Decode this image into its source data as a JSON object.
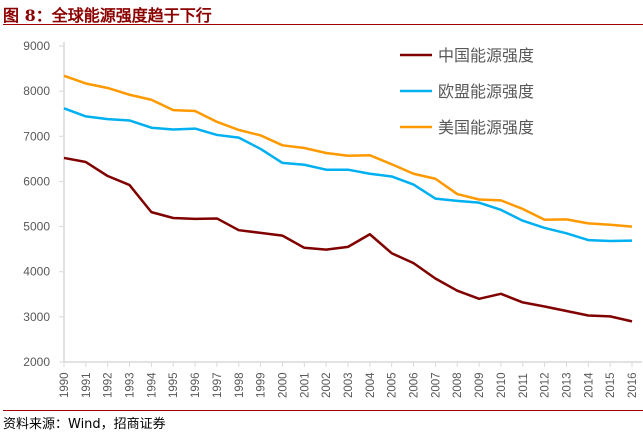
{
  "title": "图 8：全球能源强度趋于下行",
  "source": "资料来源：Wind，招商证券",
  "chart_data": {
    "type": "line",
    "x": [
      1990,
      1991,
      1992,
      1993,
      1994,
      1995,
      1996,
      1997,
      1998,
      1999,
      2000,
      2001,
      2002,
      2003,
      2004,
      2005,
      2006,
      2007,
      2008,
      2009,
      2010,
      2011,
      2012,
      2013,
      2014,
      2015,
      2016
    ],
    "ylim": [
      2000,
      9000
    ],
    "yticks": [
      2000,
      3000,
      4000,
      5000,
      6000,
      7000,
      8000,
      9000
    ],
    "grid": false,
    "legend": "top-right",
    "series": [
      {
        "name": "中国能源强度",
        "color": "#800000",
        "values": [
          6520,
          6430,
          6120,
          5920,
          5320,
          5190,
          5170,
          5180,
          4920,
          4860,
          4800,
          4530,
          4490,
          4550,
          4830,
          4410,
          4190,
          3850,
          3580,
          3400,
          3510,
          3320,
          3230,
          3130,
          3030,
          3010,
          2900
        ]
      },
      {
        "name": "欧盟能源强度",
        "color": "#00b0f0",
        "values": [
          7620,
          7440,
          7380,
          7350,
          7190,
          7150,
          7170,
          7030,
          6970,
          6720,
          6410,
          6370,
          6260,
          6260,
          6170,
          6110,
          5930,
          5620,
          5570,
          5530,
          5370,
          5130,
          4970,
          4850,
          4700,
          4680,
          4690
        ]
      },
      {
        "name": "美国能源强度",
        "color": "#ff9900",
        "values": [
          8340,
          8170,
          8070,
          7920,
          7810,
          7580,
          7560,
          7320,
          7140,
          7020,
          6800,
          6740,
          6630,
          6570,
          6580,
          6380,
          6170,
          6060,
          5720,
          5600,
          5580,
          5390,
          5150,
          5160,
          5070,
          5040,
          5000
        ]
      }
    ]
  }
}
